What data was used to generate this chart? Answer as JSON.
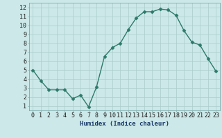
{
  "x": [
    0,
    1,
    2,
    3,
    4,
    5,
    6,
    7,
    8,
    9,
    10,
    11,
    12,
    13,
    14,
    15,
    16,
    17,
    18,
    19,
    20,
    21,
    22,
    23
  ],
  "y": [
    5.0,
    3.8,
    2.8,
    2.8,
    2.8,
    1.8,
    2.2,
    0.9,
    3.1,
    6.5,
    7.5,
    8.0,
    9.5,
    10.8,
    11.5,
    11.5,
    11.8,
    11.7,
    11.1,
    9.4,
    8.1,
    7.8,
    6.3,
    4.9
  ],
  "line_color": "#2d7a6a",
  "marker_color": "#2d7a6a",
  "bg_color": "#cce8e8",
  "grid_color": "#aacccc",
  "xlabel": "Humidex (Indice chaleur)",
  "xlim": [
    -0.5,
    23.5
  ],
  "ylim": [
    0.5,
    12.5
  ],
  "yticks": [
    1,
    2,
    3,
    4,
    5,
    6,
    7,
    8,
    9,
    10,
    11,
    12
  ],
  "xticks": [
    0,
    1,
    2,
    3,
    4,
    5,
    6,
    7,
    8,
    9,
    10,
    11,
    12,
    13,
    14,
    15,
    16,
    17,
    18,
    19,
    20,
    21,
    22,
    23
  ],
  "xlabel_fontsize": 6.5,
  "tick_fontsize": 6.0,
  "line_width": 1.0,
  "marker_size": 2.5
}
